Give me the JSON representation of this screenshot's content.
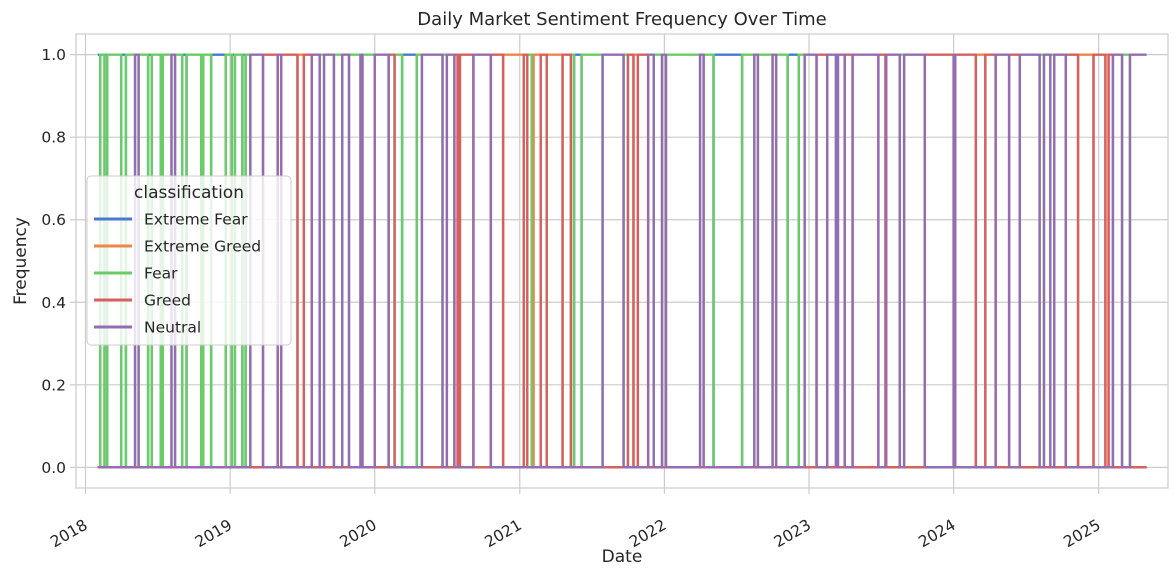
{
  "chart_data": {
    "type": "line",
    "title": "Daily Market Sentiment Frequency Over Time",
    "xlabel": "Date",
    "ylabel": "Frequency",
    "x_range": [
      "2018-02-01",
      "2025-05-02"
    ],
    "xlim": [
      "2017-12-08",
      "2025-06-25"
    ],
    "ylim": [
      -0.05,
      1.05
    ],
    "x_ticks": [
      "2018",
      "2019",
      "2020",
      "2021",
      "2022",
      "2023",
      "2024",
      "2025"
    ],
    "y_ticks": [
      "0.0",
      "0.2",
      "0.4",
      "0.6",
      "0.8",
      "1.0"
    ],
    "grid": true,
    "legend": {
      "title": "classification",
      "position": "center-left"
    },
    "series": [
      {
        "name": "Extreme Fear",
        "color": "#4878d0",
        "value_domain": [
          0,
          1
        ],
        "days_with_value_1": [
          [
            "2018-02-01",
            "2018-02-06"
          ],
          [
            "2018-02-18",
            "2018-02-24"
          ],
          [
            "2018-04-01",
            "2018-04-12"
          ],
          [
            "2018-06-08",
            "2018-06-16"
          ],
          [
            "2018-07-10",
            "2018-07-14"
          ],
          [
            "2018-09-02",
            "2018-09-12"
          ],
          [
            "2018-10-20",
            "2018-10-24"
          ],
          [
            "2018-11-14",
            "2018-12-20"
          ],
          [
            "2019-01-05",
            "2019-01-12"
          ],
          [
            "2019-02-01",
            "2019-02-08"
          ],
          [
            "2020-03-10",
            "2020-04-15"
          ],
          [
            "2021-05-18",
            "2021-06-05"
          ],
          [
            "2022-05-05",
            "2022-07-15"
          ],
          [
            "2022-11-08",
            "2022-12-05"
          ],
          [
            "2023-03-10",
            "2023-03-14"
          ]
        ]
      },
      {
        "name": "Extreme Greed",
        "color": "#ee854a",
        "value_domain": [
          0,
          1
        ],
        "days_with_value_1": [
          [
            "2019-06-20",
            "2019-07-05"
          ],
          [
            "2020-07-28",
            "2020-08-02"
          ],
          [
            "2020-11-20",
            "2021-01-10"
          ],
          [
            "2021-02-05",
            "2021-02-22"
          ],
          [
            "2021-03-10",
            "2021-04-18"
          ],
          [
            "2021-10-15",
            "2021-10-25"
          ],
          [
            "2023-07-13",
            "2023-07-14"
          ],
          [
            "2024-02-26",
            "2024-03-20"
          ],
          [
            "2024-11-10",
            "2024-12-18"
          ],
          [
            "2025-01-18",
            "2025-01-25"
          ]
        ]
      },
      {
        "name": "Fear",
        "color": "#6acc64",
        "value_domain": [
          0,
          1
        ],
        "days_with_value_1": [
          [
            "2018-02-07",
            "2018-02-17"
          ],
          [
            "2018-02-25",
            "2018-03-31"
          ],
          [
            "2018-04-13",
            "2018-05-05"
          ],
          [
            "2018-05-15",
            "2018-06-07"
          ],
          [
            "2018-06-17",
            "2018-07-09"
          ],
          [
            "2018-07-15",
            "2018-08-05"
          ],
          [
            "2018-08-15",
            "2018-09-01"
          ],
          [
            "2018-09-13",
            "2018-10-19"
          ],
          [
            "2018-10-25",
            "2018-11-13"
          ],
          [
            "2018-12-21",
            "2019-01-04"
          ],
          [
            "2019-01-13",
            "2019-01-31"
          ],
          [
            "2019-02-09",
            "2019-02-20"
          ],
          [
            "2019-08-15",
            "2019-08-25"
          ],
          [
            "2019-09-20",
            "2019-10-10"
          ],
          [
            "2019-10-28",
            "2019-11-25"
          ],
          [
            "2019-12-01",
            "2019-12-31"
          ],
          [
            "2020-02-20",
            "2020-03-09"
          ],
          [
            "2020-04-16",
            "2020-04-28"
          ],
          [
            "2020-06-20",
            "2020-06-30"
          ],
          [
            "2021-01-20",
            "2021-01-30"
          ],
          [
            "2021-05-10",
            "2021-05-17"
          ],
          [
            "2021-06-06",
            "2021-07-28"
          ],
          [
            "2021-09-20",
            "2021-09-30"
          ],
          [
            "2021-12-05",
            "2021-12-25"
          ],
          [
            "2022-01-05",
            "2022-03-31"
          ],
          [
            "2022-04-10",
            "2022-05-04"
          ],
          [
            "2022-07-16",
            "2022-08-15"
          ],
          [
            "2022-08-25",
            "2022-09-30"
          ],
          [
            "2022-10-10",
            "2022-11-07"
          ],
          [
            "2022-12-06",
            "2022-12-20"
          ],
          [
            "2023-08-18",
            "2023-08-28"
          ],
          [
            "2024-08-05",
            "2024-08-15"
          ],
          [
            "2024-09-01",
            "2024-09-10"
          ],
          [
            "2025-03-01",
            "2025-03-20"
          ]
        ]
      },
      {
        "name": "Greed",
        "color": "#d65f5f",
        "value_domain": [
          0,
          1
        ],
        "days_with_value_1": [
          [
            "2019-03-25",
            "2019-04-30"
          ],
          [
            "2019-05-10",
            "2019-06-19"
          ],
          [
            "2019-07-06",
            "2019-07-25"
          ],
          [
            "2020-02-05",
            "2020-02-19"
          ],
          [
            "2020-07-20",
            "2020-07-27"
          ],
          [
            "2020-08-03",
            "2020-09-05"
          ],
          [
            "2020-10-20",
            "2020-11-19"
          ],
          [
            "2021-01-11",
            "2021-01-19"
          ],
          [
            "2021-02-23",
            "2021-03-09"
          ],
          [
            "2021-04-19",
            "2021-05-09"
          ],
          [
            "2021-10-01",
            "2021-10-14"
          ],
          [
            "2021-10-26",
            "2021-11-20"
          ],
          [
            "2023-01-20",
            "2023-02-15"
          ],
          [
            "2023-04-01",
            "2023-04-20"
          ],
          [
            "2023-06-25",
            "2023-07-12"
          ],
          [
            "2023-10-20",
            "2023-12-31"
          ],
          [
            "2024-01-05",
            "2024-02-25"
          ],
          [
            "2024-03-21",
            "2024-04-15"
          ],
          [
            "2024-05-20",
            "2024-06-15"
          ],
          [
            "2024-10-10",
            "2024-11-09"
          ],
          [
            "2024-12-19",
            "2025-01-17"
          ],
          [
            "2025-01-26",
            "2025-02-05"
          ]
        ]
      },
      {
        "name": "Neutral",
        "color": "#956cb4",
        "value_domain": [
          0,
          1
        ],
        "days_with_value_1": [
          [
            "2018-05-06",
            "2018-05-14"
          ],
          [
            "2018-08-06",
            "2018-08-14"
          ],
          [
            "2019-02-21",
            "2019-03-24"
          ],
          [
            "2019-05-01",
            "2019-05-09"
          ],
          [
            "2019-07-26",
            "2019-08-14"
          ],
          [
            "2019-08-26",
            "2019-09-19"
          ],
          [
            "2019-10-11",
            "2019-10-27"
          ],
          [
            "2019-11-26",
            "2019-11-30"
          ],
          [
            "2020-01-01",
            "2020-02-04"
          ],
          [
            "2020-04-29",
            "2020-06-19"
          ],
          [
            "2020-07-01",
            "2020-07-19"
          ],
          [
            "2020-09-06",
            "2020-10-19"
          ],
          [
            "2021-07-29",
            "2021-09-19"
          ],
          [
            "2021-11-21",
            "2021-12-04"
          ],
          [
            "2021-12-26",
            "2022-01-04"
          ],
          [
            "2022-04-01",
            "2022-04-09"
          ],
          [
            "2022-08-16",
            "2022-08-24"
          ],
          [
            "2022-10-01",
            "2022-10-09"
          ],
          [
            "2022-12-21",
            "2023-01-19"
          ],
          [
            "2023-02-16",
            "2023-03-09"
          ],
          [
            "2023-03-15",
            "2023-03-31"
          ],
          [
            "2023-04-21",
            "2023-06-24"
          ],
          [
            "2023-07-15",
            "2023-08-17"
          ],
          [
            "2023-08-29",
            "2023-10-19"
          ],
          [
            "2024-01-01",
            "2024-01-04"
          ],
          [
            "2024-04-16",
            "2024-05-19"
          ],
          [
            "2024-06-16",
            "2024-08-04"
          ],
          [
            "2024-08-16",
            "2024-08-31"
          ],
          [
            "2024-09-11",
            "2024-10-09"
          ],
          [
            "2025-02-06",
            "2025-02-28"
          ],
          [
            "2025-03-21",
            "2025-05-02"
          ]
        ]
      }
    ]
  }
}
